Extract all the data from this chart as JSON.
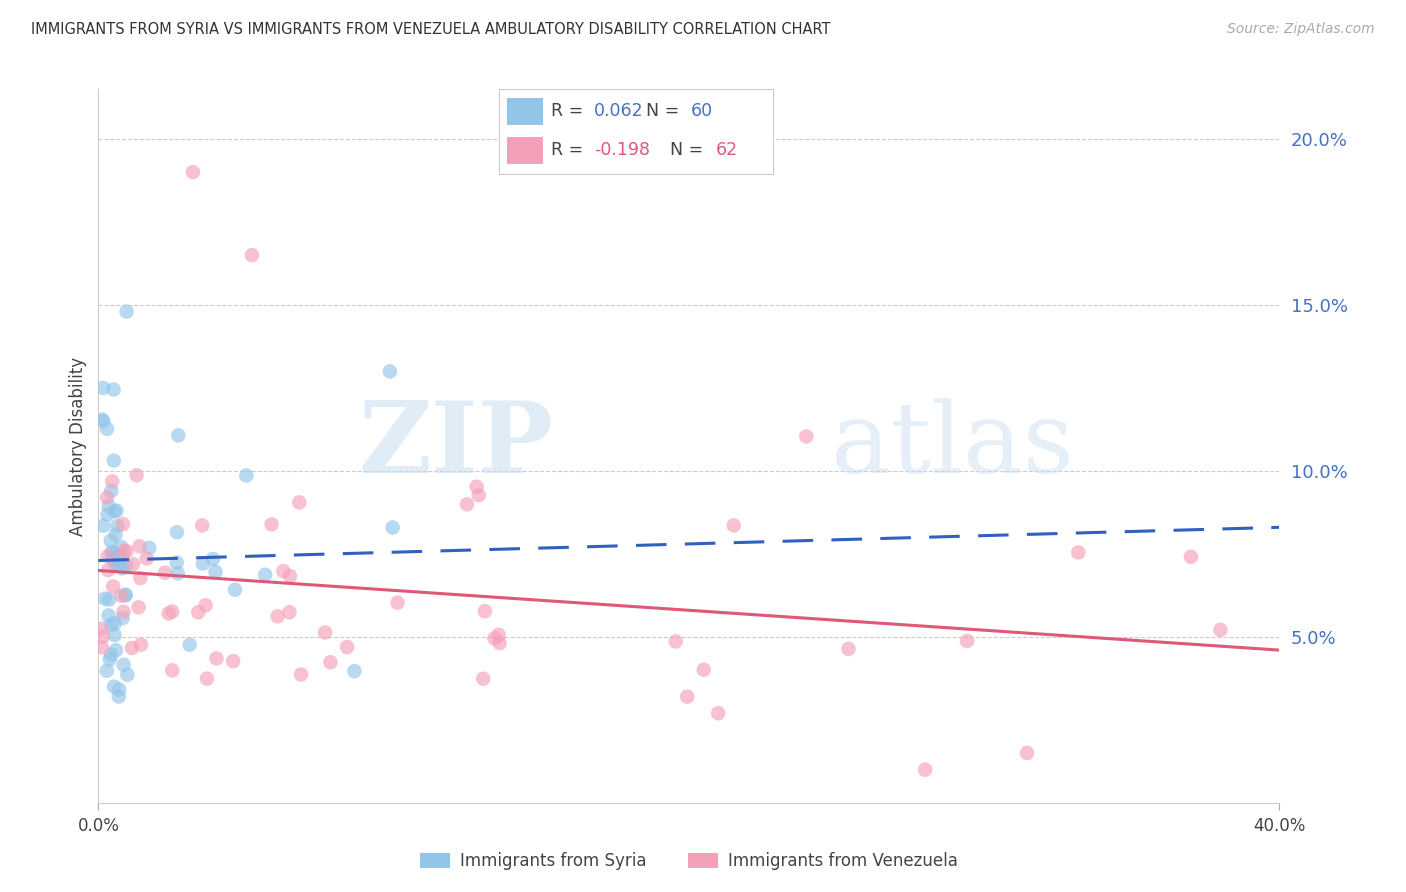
{
  "title": "IMMIGRANTS FROM SYRIA VS IMMIGRANTS FROM VENEZUELA AMBULATORY DISABILITY CORRELATION CHART",
  "source": "Source: ZipAtlas.com",
  "ylabel": "Ambulatory Disability",
  "ytick_values": [
    0.05,
    0.1,
    0.15,
    0.2
  ],
  "xlim": [
    0.0,
    0.4
  ],
  "ylim": [
    0.0,
    0.215
  ],
  "syria_R": 0.062,
  "syria_N": 60,
  "venezuela_R": -0.198,
  "venezuela_N": 62,
  "syria_color": "#92c5e8",
  "venezuela_color": "#f4a0b8",
  "syria_line_color": "#3060c0",
  "venezuela_line_color": "#e05878",
  "background_color": "#ffffff",
  "watermark_zip": "ZIP",
  "watermark_atlas": "atlas",
  "syria_line_start_y": 0.073,
  "syria_line_end_y": 0.083,
  "venezuela_line_start_y": 0.07,
  "venezuela_line_end_y": 0.046
}
